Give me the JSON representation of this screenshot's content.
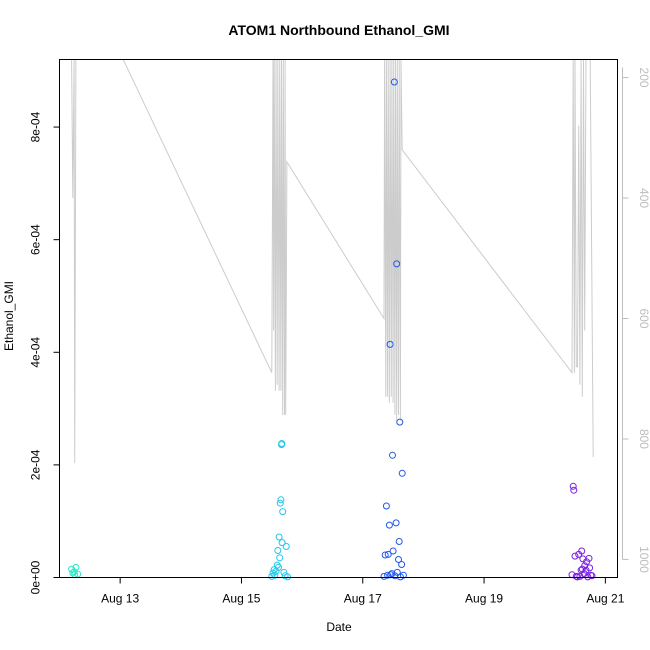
{
  "chart_data": {
    "type": "scatter",
    "title": "ATOM1 Northbound Ethanol_GMI",
    "xlabel": "Date",
    "ylabel": "Ethanol_GMI",
    "x_unit": "day",
    "x_ticks": [
      {
        "day": 13,
        "label": "Aug 13"
      },
      {
        "day": 15,
        "label": "Aug 15"
      },
      {
        "day": 17,
        "label": "Aug 17"
      },
      {
        "day": 19,
        "label": "Aug 19"
      },
      {
        "day": 21,
        "label": "Aug 21"
      }
    ],
    "xlim": [
      12.0,
      21.2
    ],
    "ylim": [
      0,
      0.00092
    ],
    "y_ticks": [
      {
        "value": 0,
        "label": "0e+00"
      },
      {
        "value": 0.0002,
        "label": "2e-04"
      },
      {
        "value": 0.0004,
        "label": "4e-04"
      },
      {
        "value": 0.0006,
        "label": "6e-04"
      },
      {
        "value": 0.0008,
        "label": "8e-04"
      }
    ],
    "secondary_axis": {
      "reversed": true,
      "ylim": [
        1030,
        170
      ],
      "ticks": [
        {
          "value": 200,
          "label": "200"
        },
        {
          "value": 400,
          "label": "400"
        },
        {
          "value": 600,
          "label": "600"
        },
        {
          "value": 800,
          "label": "800"
        },
        {
          "value": 1000,
          "label": "1000"
        }
      ],
      "color": "#bdbdbd"
    },
    "grid": false,
    "series": [
      {
        "color": "#2ee6c8",
        "points": [
          [
            12.2,
            1.5e-05
          ],
          [
            12.22,
            8e-06
          ],
          [
            12.24,
            1e-05
          ],
          [
            12.25,
            5e-06
          ],
          [
            12.27,
            1.8e-05
          ],
          [
            12.3,
            6e-06
          ]
        ]
      },
      {
        "color": "#22c8ea",
        "points": [
          [
            15.5,
            2e-06
          ],
          [
            15.52,
            8e-06
          ],
          [
            15.54,
            1.4e-05
          ],
          [
            15.55,
            4e-06
          ],
          [
            15.57,
            1.1e-05
          ],
          [
            15.59,
            2.2e-05
          ],
          [
            15.6,
            4.8e-05
          ],
          [
            15.61,
            1.8e-05
          ],
          [
            15.62,
            7.2e-05
          ],
          [
            15.63,
            3.5e-05
          ],
          [
            15.64,
            0.000132
          ],
          [
            15.65,
            0.000138
          ],
          [
            15.66,
            0.000236
          ],
          [
            15.665,
            0.000238
          ],
          [
            15.67,
            6.2e-05
          ],
          [
            15.68,
            0.000117
          ],
          [
            15.7,
            9e-06
          ],
          [
            15.72,
            3e-06
          ],
          [
            15.74,
            5.5e-05
          ],
          [
            15.76,
            1e-06
          ]
        ]
      },
      {
        "color": "#2058e8",
        "points": [
          [
            17.35,
            2e-06
          ],
          [
            17.37,
            4e-05
          ],
          [
            17.39,
            0.000127
          ],
          [
            17.41,
            4e-06
          ],
          [
            17.42,
            4.1e-05
          ],
          [
            17.44,
            9.3e-05
          ],
          [
            17.45,
            0.000414
          ],
          [
            17.46,
            5e-06
          ],
          [
            17.48,
            7e-06
          ],
          [
            17.49,
            0.000217
          ],
          [
            17.5,
            4.7e-05
          ],
          [
            17.52,
            0.00088
          ],
          [
            17.53,
            3e-06
          ],
          [
            17.55,
            9.7e-05
          ],
          [
            17.56,
            0.000557
          ],
          [
            17.57,
            9e-06
          ],
          [
            17.59,
            3.2e-05
          ],
          [
            17.6,
            6.4e-05
          ],
          [
            17.61,
            0.000276
          ],
          [
            17.62,
            1e-06
          ],
          [
            17.64,
            2.3e-05
          ],
          [
            17.65,
            0.000185
          ],
          [
            17.67,
            4e-06
          ]
        ]
      },
      {
        "color": "#7a1fe6",
        "points": [
          [
            20.45,
            5e-06
          ],
          [
            20.47,
            0.000162
          ],
          [
            20.48,
            0.000155
          ],
          [
            20.5,
            3.8e-05
          ],
          [
            20.52,
            2e-06
          ],
          [
            20.54,
            1e-06
          ],
          [
            20.56,
            4.1e-05
          ],
          [
            20.58,
            2e-06
          ],
          [
            20.6,
            1.3e-05
          ],
          [
            20.61,
            4.7e-05
          ],
          [
            20.62,
            1.5e-05
          ],
          [
            20.63,
            3.3e-05
          ],
          [
            20.65,
            7e-06
          ],
          [
            20.66,
            2.1e-05
          ],
          [
            20.68,
            1.3e-05
          ],
          [
            20.69,
            2.8e-05
          ],
          [
            20.71,
            1e-06
          ],
          [
            20.73,
            3.4e-05
          ],
          [
            20.74,
            1.7e-05
          ],
          [
            20.76,
            4e-06
          ],
          [
            20.78,
            3e-06
          ]
        ]
      }
    ],
    "depth_line": {
      "color": "#cccccc",
      "points": [
        [
          12.2,
          170
        ],
        [
          12.22,
          400
        ],
        [
          12.24,
          170
        ],
        [
          12.25,
          840
        ],
        [
          12.27,
          170
        ],
        [
          12.33,
          170
        ],
        [
          12.36,
          170
        ],
        [
          12.38,
          170
        ],
        [
          13.05,
          170
        ],
        [
          15.5,
          690
        ],
        [
          15.52,
          170
        ],
        [
          15.53,
          620
        ],
        [
          15.54,
          170
        ],
        [
          15.56,
          720
        ],
        [
          15.57,
          170
        ],
        [
          15.59,
          710
        ],
        [
          15.6,
          170
        ],
        [
          15.62,
          720
        ],
        [
          15.63,
          170
        ],
        [
          15.65,
          720
        ],
        [
          15.66,
          170
        ],
        [
          15.68,
          760
        ],
        [
          15.69,
          170
        ],
        [
          15.71,
          760
        ],
        [
          15.72,
          170
        ],
        [
          15.73,
          760
        ],
        [
          15.75,
          340
        ],
        [
          17.35,
          600
        ],
        [
          17.36,
          170
        ],
        [
          17.38,
          730
        ],
        [
          17.39,
          170
        ],
        [
          17.41,
          730
        ],
        [
          17.42,
          170
        ],
        [
          17.44,
          740
        ],
        [
          17.45,
          170
        ],
        [
          17.47,
          730
        ],
        [
          17.48,
          170
        ],
        [
          17.5,
          740
        ],
        [
          17.51,
          170
        ],
        [
          17.53,
          760
        ],
        [
          17.54,
          170
        ],
        [
          17.56,
          770
        ],
        [
          17.57,
          170
        ],
        [
          17.59,
          760
        ],
        [
          17.6,
          170
        ],
        [
          17.62,
          770
        ],
        [
          17.63,
          170
        ],
        [
          17.65,
          320
        ],
        [
          20.45,
          690
        ],
        [
          20.47,
          170
        ],
        [
          20.49,
          690
        ],
        [
          20.5,
          170
        ],
        [
          20.52,
          680
        ],
        [
          20.54,
          680
        ],
        [
          20.56,
          280
        ],
        [
          20.58,
          710
        ],
        [
          20.6,
          170
        ],
        [
          20.62,
          730
        ],
        [
          20.64,
          170
        ],
        [
          20.66,
          620
        ],
        [
          20.68,
          170
        ],
        [
          20.7,
          170
        ],
        [
          20.75,
          170
        ],
        [
          20.8,
          830
        ]
      ]
    }
  }
}
